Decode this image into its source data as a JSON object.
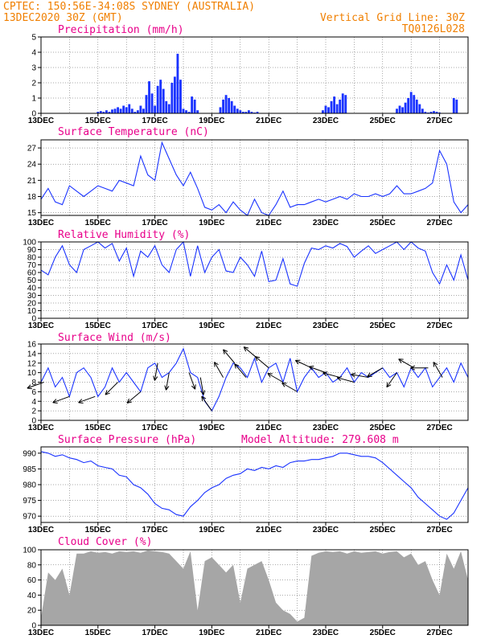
{
  "header": {
    "line1_left": "CPTEC:   150:56E-34:08S  SYDNEY (AUSTRALIA)",
    "line2_left": "13DEC2020 30Z (GMT)",
    "line2_right": "Vertical Grid Line: 30Z",
    "line3_right": "TQ0126L028"
  },
  "colors": {
    "header": "#f07f00",
    "title": "#e8008a",
    "series": "#1a33ff",
    "cloud": "#a6a6a6"
  },
  "chart_data": [
    {
      "type": "bar",
      "title": "Precipitation (mm/h)",
      "x_ticks": [
        "13DEC",
        "15DEC",
        "17DEC",
        "19DEC",
        "21DEC",
        "23DEC",
        "25DEC",
        "27DEC"
      ],
      "ylim": [
        0,
        5
      ],
      "y_ticks": [
        0,
        1,
        2,
        3,
        4,
        5
      ],
      "x": [
        2.0,
        2.1,
        2.2,
        2.3,
        2.4,
        2.5,
        2.6,
        2.7,
        2.8,
        2.9,
        3.0,
        3.1,
        3.2,
        3.3,
        3.4,
        3.5,
        3.6,
        3.7,
        3.8,
        3.9,
        4.0,
        4.1,
        4.2,
        4.3,
        4.4,
        4.5,
        4.6,
        4.7,
        4.8,
        4.9,
        5.0,
        5.1,
        5.2,
        5.3,
        5.4,
        5.5,
        6.3,
        6.4,
        6.5,
        6.6,
        6.7,
        6.8,
        6.9,
        7.0,
        7.1,
        7.2,
        7.3,
        7.4,
        7.5,
        7.6,
        9.9,
        10.0,
        10.1,
        10.2,
        10.3,
        10.4,
        10.5,
        10.6,
        10.7,
        12.5,
        12.6,
        12.7,
        12.8,
        12.9,
        13.0,
        13.1,
        13.2,
        13.3,
        13.4,
        13.5,
        13.6,
        13.7,
        13.8,
        13.9,
        14.0,
        14.5,
        14.6
      ],
      "values": [
        0.1,
        0.15,
        0.1,
        0.2,
        0.1,
        0.25,
        0.3,
        0.4,
        0.3,
        0.5,
        0.4,
        0.6,
        0.3,
        0.1,
        0.2,
        0.5,
        0.3,
        1.2,
        2.1,
        1.3,
        0.5,
        1.8,
        2.2,
        1.6,
        0.8,
        0.6,
        2.0,
        2.4,
        3.9,
        2.2,
        0.3,
        0.2,
        0.1,
        1.1,
        0.9,
        0.2,
        0.4,
        0.9,
        1.2,
        1.0,
        0.8,
        0.5,
        0.3,
        0.2,
        0.1,
        0.1,
        0.2,
        0.1,
        0.05,
        0.1,
        0.2,
        0.5,
        0.4,
        0.8,
        1.1,
        0.6,
        0.9,
        1.3,
        1.2,
        0.3,
        0.5,
        0.4,
        0.7,
        1.0,
        1.4,
        1.2,
        0.9,
        0.6,
        0.3,
        0.1,
        0.05,
        0.1,
        0.15,
        0.1,
        0.05,
        1.0,
        0.9
      ]
    },
    {
      "type": "line",
      "title": "Surface Temperature (nC)",
      "x_ticks": [
        "13DEC",
        "15DEC",
        "17DEC",
        "19DEC",
        "21DEC",
        "23DEC",
        "25DEC",
        "27DEC"
      ],
      "ylim": [
        14.5,
        28.5
      ],
      "y_ticks": [
        15,
        18,
        21,
        24,
        27
      ],
      "x": [
        0,
        0.25,
        0.5,
        0.75,
        1.0,
        1.25,
        1.5,
        1.75,
        2.0,
        2.25,
        2.5,
        2.75,
        3.0,
        3.25,
        3.5,
        3.75,
        4.0,
        4.25,
        4.5,
        4.75,
        5.0,
        5.25,
        5.5,
        5.75,
        6.0,
        6.25,
        6.5,
        6.75,
        7.0,
        7.25,
        7.5,
        7.75,
        8.0,
        8.25,
        8.5,
        8.75,
        9.0,
        9.25,
        9.5,
        9.75,
        10.0,
        10.25,
        10.5,
        10.75,
        11.0,
        11.25,
        11.5,
        11.75,
        12.0,
        12.25,
        12.5,
        12.75,
        13.0,
        13.25,
        13.5,
        13.75,
        14.0,
        14.25,
        14.5,
        14.75,
        15.0
      ],
      "values": [
        17.5,
        19.5,
        17.0,
        16.5,
        20.0,
        19.0,
        18.0,
        19.0,
        20.0,
        19.5,
        19.0,
        21.0,
        20.5,
        20.0,
        25.5,
        22.0,
        21.0,
        28.0,
        25.0,
        22.0,
        20.0,
        22.5,
        19.5,
        16.0,
        15.5,
        16.5,
        15.0,
        17.0,
        15.5,
        14.5,
        17.5,
        15.0,
        14.5,
        16.5,
        19.0,
        16.0,
        16.5,
        16.5,
        17.0,
        17.5,
        17.0,
        17.5,
        18.0,
        17.5,
        18.5,
        18.0,
        18.0,
        18.5,
        18.0,
        18.5,
        20.0,
        18.5,
        18.5,
        19.0,
        19.5,
        20.5,
        26.5,
        24.0,
        17.0,
        15.0,
        16.5
      ]
    },
    {
      "type": "line",
      "title": "Relative Humidity (%)",
      "x_ticks": [
        "13DEC",
        "15DEC",
        "17DEC",
        "19DEC",
        "21DEC",
        "23DEC",
        "25DEC",
        "27DEC"
      ],
      "ylim": [
        0,
        100
      ],
      "y_ticks": [
        0,
        10,
        20,
        30,
        40,
        50,
        60,
        70,
        80,
        90,
        100
      ],
      "x": [
        0,
        0.25,
        0.5,
        0.75,
        1.0,
        1.25,
        1.5,
        1.75,
        2.0,
        2.25,
        2.5,
        2.75,
        3.0,
        3.25,
        3.5,
        3.75,
        4.0,
        4.25,
        4.5,
        4.75,
        5.0,
        5.25,
        5.5,
        5.75,
        6.0,
        6.25,
        6.5,
        6.75,
        7.0,
        7.25,
        7.5,
        7.75,
        8.0,
        8.25,
        8.5,
        8.75,
        9.0,
        9.25,
        9.5,
        9.75,
        10.0,
        10.25,
        10.5,
        10.75,
        11.0,
        11.25,
        11.5,
        11.75,
        12.0,
        12.25,
        12.5,
        12.75,
        13.0,
        13.25,
        13.5,
        13.75,
        14.0,
        14.25,
        14.5,
        14.75,
        15.0
      ],
      "values": [
        63,
        57,
        80,
        95,
        70,
        60,
        90,
        95,
        100,
        92,
        98,
        75,
        92,
        55,
        88,
        80,
        95,
        70,
        60,
        90,
        100,
        55,
        95,
        60,
        80,
        90,
        62,
        60,
        80,
        70,
        55,
        88,
        48,
        50,
        78,
        45,
        42,
        72,
        92,
        90,
        95,
        92,
        98,
        94,
        80,
        88,
        95,
        85,
        90,
        95,
        100,
        90,
        100,
        92,
        88,
        60,
        45,
        70,
        50,
        83,
        50
      ]
    },
    {
      "type": "line",
      "title": "Surface Wind (m/s)",
      "x_ticks": [
        "13DEC",
        "15DEC",
        "17DEC",
        "19DEC",
        "21DEC",
        "23DEC",
        "25DEC",
        "27DEC"
      ],
      "ylim": [
        0,
        16
      ],
      "y_ticks": [
        0,
        2,
        4,
        6,
        8,
        10,
        12,
        14,
        16
      ],
      "x": [
        0,
        0.25,
        0.5,
        0.75,
        1.0,
        1.25,
        1.5,
        1.75,
        2.0,
        2.25,
        2.5,
        2.75,
        3.0,
        3.25,
        3.5,
        3.75,
        4.0,
        4.25,
        4.5,
        4.75,
        5.0,
        5.25,
        5.5,
        5.75,
        6.0,
        6.25,
        6.5,
        6.75,
        7.0,
        7.25,
        7.5,
        7.75,
        8.0,
        8.25,
        8.5,
        8.75,
        9.0,
        9.25,
        9.5,
        9.75,
        10.0,
        10.25,
        10.5,
        10.75,
        11.0,
        11.25,
        11.5,
        11.75,
        12.0,
        12.25,
        12.5,
        12.75,
        13.0,
        13.25,
        13.5,
        13.75,
        14.0,
        14.25,
        14.5,
        14.75,
        15.0
      ],
      "values": [
        8,
        11,
        7,
        9,
        5,
        10,
        11,
        9,
        5,
        7,
        11,
        8,
        10,
        8,
        6,
        11,
        12,
        9,
        10,
        12,
        15,
        10,
        9,
        4,
        2,
        5,
        9,
        12,
        11,
        9,
        13,
        8,
        11,
        12,
        8,
        13,
        6,
        9,
        11,
        9,
        10,
        8,
        9,
        11,
        8,
        10,
        9,
        10,
        11,
        9,
        10,
        7,
        11,
        9,
        11,
        7,
        9,
        11,
        8,
        12,
        9
      ],
      "arrows": [
        {
          "x": 0.1,
          "dir_deg": 250
        },
        {
          "x": 1.0,
          "dir_deg": 250
        },
        {
          "x": 1.9,
          "dir_deg": 250
        },
        {
          "x": 2.7,
          "dir_deg": 225
        },
        {
          "x": 3.5,
          "dir_deg": 230
        },
        {
          "x": 4.1,
          "dir_deg": 190
        },
        {
          "x": 4.5,
          "dir_deg": 190
        },
        {
          "x": 5.2,
          "dir_deg": 160
        },
        {
          "x": 5.6,
          "dir_deg": 170
        },
        {
          "x": 6.0,
          "dir_deg": 325
        },
        {
          "x": 6.4,
          "dir_deg": 330
        },
        {
          "x": 6.8,
          "dir_deg": 320
        },
        {
          "x": 7.2,
          "dir_deg": 320
        },
        {
          "x": 7.6,
          "dir_deg": 310
        },
        {
          "x": 8.0,
          "dir_deg": 310
        },
        {
          "x": 8.5,
          "dir_deg": 300
        },
        {
          "x": 9.0,
          "dir_deg": 300
        },
        {
          "x": 9.5,
          "dir_deg": 295
        },
        {
          "x": 10.0,
          "dir_deg": 290
        },
        {
          "x": 10.5,
          "dir_deg": 285
        },
        {
          "x": 11.0,
          "dir_deg": 285
        },
        {
          "x": 11.5,
          "dir_deg": 280
        },
        {
          "x": 12.0,
          "dir_deg": 240
        },
        {
          "x": 12.5,
          "dir_deg": 215
        },
        {
          "x": 13.1,
          "dir_deg": 300
        },
        {
          "x": 13.6,
          "dir_deg": 270
        },
        {
          "x": 14.1,
          "dir_deg": 330
        }
      ]
    },
    {
      "type": "line",
      "title": "Surface Pressure (hPa)",
      "annotation": "Model Altitude: 279.608 m",
      "x_ticks": [
        "13DEC",
        "15DEC",
        "17DEC",
        "19DEC",
        "21DEC",
        "23DEC",
        "25DEC",
        "27DEC"
      ],
      "ylim": [
        968,
        992
      ],
      "y_ticks": [
        970,
        975,
        980,
        985,
        990
      ],
      "x": [
        0,
        0.25,
        0.5,
        0.75,
        1.0,
        1.25,
        1.5,
        1.75,
        2.0,
        2.25,
        2.5,
        2.75,
        3.0,
        3.25,
        3.5,
        3.75,
        4.0,
        4.25,
        4.5,
        4.75,
        5.0,
        5.25,
        5.5,
        5.75,
        6.0,
        6.25,
        6.5,
        6.75,
        7.0,
        7.25,
        7.5,
        7.75,
        8.0,
        8.25,
        8.5,
        8.75,
        9.0,
        9.25,
        9.5,
        9.75,
        10.0,
        10.25,
        10.5,
        10.75,
        11.0,
        11.25,
        11.5,
        11.75,
        12.0,
        12.25,
        12.5,
        12.75,
        13.0,
        13.25,
        13.5,
        13.75,
        14.0,
        14.25,
        14.5,
        14.75,
        15.0
      ],
      "values": [
        990.5,
        990,
        989,
        989.5,
        988.5,
        988,
        987,
        987.5,
        986,
        985.5,
        985,
        983,
        982.5,
        980,
        979,
        977,
        974,
        972.5,
        972,
        970.5,
        970,
        973,
        975,
        977.5,
        979,
        980,
        982,
        983,
        983.5,
        985,
        984.5,
        985.5,
        985,
        986,
        985.5,
        987,
        987.5,
        987.5,
        988,
        988,
        988.5,
        989,
        990,
        990,
        989.5,
        989,
        989,
        988.5,
        987,
        985,
        983,
        981,
        979,
        976,
        974,
        972,
        970,
        969,
        971,
        975,
        979
      ]
    },
    {
      "type": "area",
      "title": "Cloud Cover (%)",
      "x_ticks": [
        "13DEC",
        "15DEC",
        "17DEC",
        "19DEC",
        "21DEC",
        "23DEC",
        "25DEC",
        "27DEC"
      ],
      "ylim": [
        0,
        100
      ],
      "y_ticks": [
        0,
        20,
        40,
        60,
        80,
        100
      ],
      "x": [
        0,
        0.25,
        0.5,
        0.75,
        1.0,
        1.25,
        1.5,
        1.75,
        2.0,
        2.25,
        2.5,
        2.75,
        3.0,
        3.25,
        3.5,
        3.75,
        4.0,
        4.25,
        4.5,
        4.75,
        5.0,
        5.25,
        5.5,
        5.75,
        6.0,
        6.25,
        6.5,
        6.75,
        7.0,
        7.25,
        7.5,
        7.75,
        8.0,
        8.25,
        8.5,
        8.75,
        9.0,
        9.25,
        9.5,
        9.75,
        10.0,
        10.25,
        10.5,
        10.75,
        11.0,
        11.25,
        11.5,
        11.75,
        12.0,
        12.25,
        12.5,
        12.75,
        13.0,
        13.25,
        13.5,
        13.75,
        14.0,
        14.25,
        14.5,
        14.75,
        15.0
      ],
      "values": [
        10,
        70,
        60,
        75,
        40,
        95,
        95,
        98,
        96,
        97,
        95,
        98,
        97,
        98,
        96,
        99,
        98,
        97,
        95,
        85,
        75,
        98,
        20,
        85,
        90,
        80,
        70,
        80,
        30,
        75,
        80,
        85,
        60,
        30,
        20,
        15,
        5,
        10,
        92,
        96,
        98,
        97,
        98,
        95,
        98,
        96,
        97,
        98,
        95,
        97,
        98,
        90,
        95,
        80,
        85,
        60,
        40,
        95,
        75,
        98,
        60
      ]
    }
  ]
}
